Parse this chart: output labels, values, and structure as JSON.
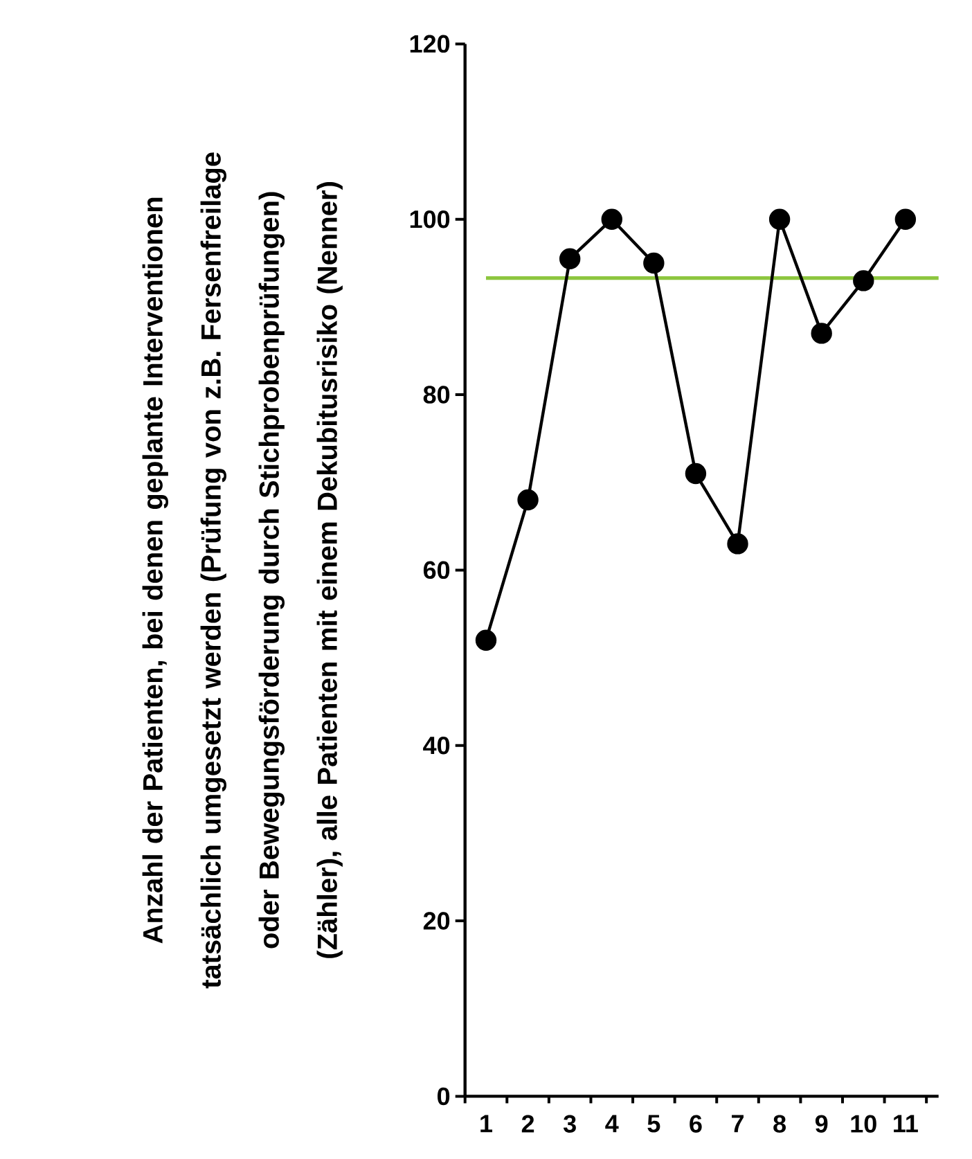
{
  "chart_data": {
    "type": "line",
    "ylabel": "Anzahl der Patienten, bei denen geplante Interventionen tatsächlich umgesetzt werden (Prüfung von z.B. Fersenfreilage oder Bewegungsförderung durch Stichprobenprüfungen) (Zähler), alle Patienten mit einem Dekubitusrisiko (Nenner)",
    "categories": [
      "1",
      "2",
      "3",
      "4",
      "5",
      "6",
      "7",
      "8",
      "9",
      "10",
      "11"
    ],
    "series": [
      {
        "color": "#000000",
        "values": [
          52,
          68,
          95.5,
          100,
          95,
          71,
          63,
          100,
          87,
          93,
          100
        ]
      }
    ],
    "ylim": [
      0,
      120
    ],
    "yticks": [
      0,
      20,
      40,
      60,
      80,
      100,
      120
    ],
    "ref_lines": [
      {
        "axis": "y",
        "value": 93.3,
        "color": "#8dc63f"
      }
    ],
    "marker": "circle",
    "line_style": "solid"
  }
}
